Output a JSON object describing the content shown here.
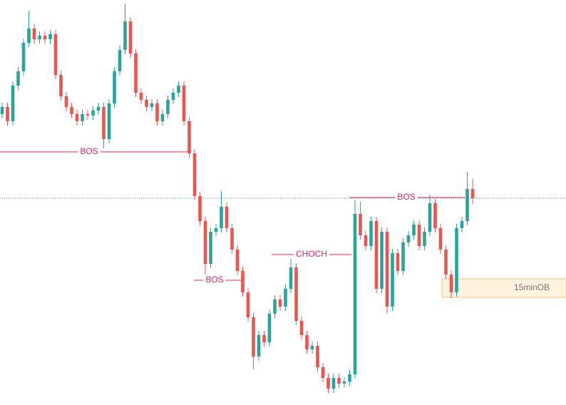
{
  "chart_data": {
    "type": "candlestick",
    "up_color": "#26a69a",
    "down_color": "#ef5350",
    "annotation_color": "#e91e63",
    "ylim": [
      0,
      563
    ],
    "open": [
      403,
      413,
      393,
      443,
      463,
      503,
      523,
      508,
      513,
      508,
      515,
      458,
      428,
      413,
      403,
      393,
      403,
      401,
      408,
      413,
      368,
      418,
      463,
      493,
      533,
      488,
      433,
      423,
      413,
      418,
      393,
      403,
      423,
      433,
      443,
      393,
      348,
      288,
      253,
      193,
      238,
      243,
      273,
      243,
      213,
      183,
      153,
      118,
      63,
      93,
      83,
      123,
      143,
      133,
      158,
      188,
      113,
      93,
      73,
      78,
      48,
      33,
      18,
      33,
      25,
      28,
      38,
      263,
      233,
      218,
      253,
      158,
      238,
      133,
      208,
      183,
      223,
      233,
      248,
      218,
      238,
      278,
      243,
      213,
      178,
      153,
      243,
      253,
      298
    ],
    "high": [
      419,
      419,
      449,
      469,
      509,
      548,
      529,
      519,
      519,
      521,
      521,
      464,
      434,
      419,
      409,
      409,
      409,
      414,
      419,
      419,
      424,
      469,
      499,
      558,
      539,
      494,
      439,
      429,
      424,
      424,
      409,
      429,
      439,
      449,
      449,
      399,
      354,
      294,
      259,
      244,
      249,
      295,
      279,
      249,
      219,
      189,
      159,
      124,
      99,
      99,
      129,
      149,
      149,
      164,
      200,
      194,
      119,
      99,
      84,
      84,
      54,
      39,
      39,
      39,
      34,
      44,
      283,
      280,
      239,
      259,
      259,
      244,
      244,
      214,
      214,
      229,
      239,
      254,
      254,
      244,
      290,
      284,
      249,
      219,
      184,
      249,
      259,
      322,
      312
    ],
    "low": [
      397,
      387,
      387,
      437,
      457,
      497,
      502,
      502,
      502,
      502,
      452,
      422,
      407,
      397,
      387,
      387,
      395,
      395,
      402,
      355,
      362,
      412,
      457,
      487,
      482,
      427,
      417,
      407,
      407,
      387,
      387,
      397,
      417,
      427,
      387,
      342,
      282,
      247,
      175,
      187,
      232,
      237,
      237,
      207,
      177,
      147,
      112,
      45,
      57,
      77,
      77,
      117,
      127,
      127,
      152,
      107,
      87,
      67,
      67,
      42,
      27,
      12,
      12,
      19,
      19,
      22,
      32,
      227,
      212,
      212,
      152,
      152,
      123,
      127,
      177,
      177,
      217,
      227,
      212,
      212,
      232,
      237,
      207,
      172,
      145,
      147,
      237,
      247,
      277
    ],
    "close": [
      413,
      393,
      443,
      463,
      503,
      523,
      508,
      513,
      508,
      515,
      458,
      428,
      413,
      403,
      393,
      403,
      401,
      408,
      413,
      368,
      418,
      463,
      493,
      533,
      488,
      433,
      423,
      413,
      418,
      393,
      403,
      423,
      433,
      443,
      393,
      348,
      288,
      253,
      193,
      238,
      243,
      273,
      243,
      213,
      183,
      153,
      118,
      63,
      93,
      83,
      123,
      143,
      133,
      158,
      188,
      113,
      93,
      73,
      78,
      48,
      33,
      18,
      33,
      25,
      28,
      38,
      263,
      233,
      218,
      253,
      158,
      238,
      133,
      208,
      183,
      223,
      233,
      248,
      218,
      238,
      278,
      243,
      213,
      178,
      153,
      243,
      253,
      298,
      285
    ],
    "annotations": [
      {
        "label": "BOS",
        "level": 350
      },
      {
        "label": "BOS",
        "level": 286
      },
      {
        "label": "BOS",
        "level": 170
      },
      {
        "label": "CHOCH",
        "level": 206
      }
    ],
    "zone": {
      "label": "15minOB",
      "top": 172,
      "bottom": 146
    }
  }
}
